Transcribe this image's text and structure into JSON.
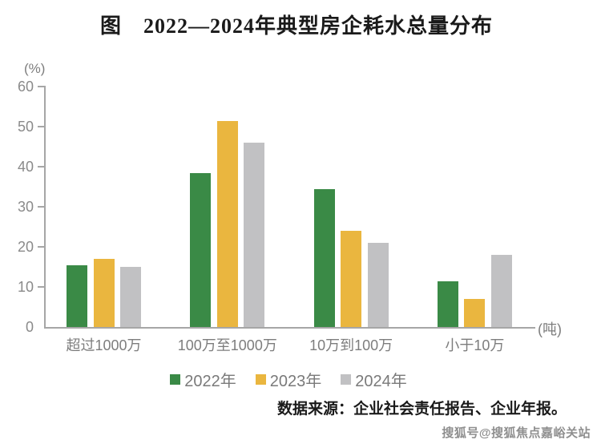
{
  "title": "图　2022—2024年典型房企耗水总量分布",
  "chart_data": {
    "type": "bar",
    "categories": [
      "超过1000万",
      "100万至1000万",
      "10万到100万",
      "小于10万"
    ],
    "series": [
      {
        "name": "2022年",
        "color": "#3a8a46",
        "values": [
          15.5,
          38.5,
          34.5,
          11.5
        ]
      },
      {
        "name": "2023年",
        "color": "#eab63f",
        "values": [
          17,
          51.5,
          24,
          7
        ]
      },
      {
        "name": "2024年",
        "color": "#c1c1c3",
        "values": [
          15,
          46,
          21,
          18
        ]
      }
    ],
    "y_unit": "(%)",
    "x_unit": "(吨)",
    "ylim": [
      0,
      60
    ],
    "yticks": [
      0,
      10,
      20,
      30,
      40,
      50,
      60
    ],
    "grid": false,
    "legend_position": "bottom"
  },
  "source_note": "数据来源：企业社会责任报告、企业年报。",
  "watermark": "搜狐号@搜狐焦点嘉峪关站",
  "style_colors": {
    "axis_line": "#a6a6a6",
    "tick_text": "#8a8a8a",
    "category_text": "#7d7d7d",
    "legend_text": "#7a7a7a",
    "title_text": "#1a1a1a"
  }
}
